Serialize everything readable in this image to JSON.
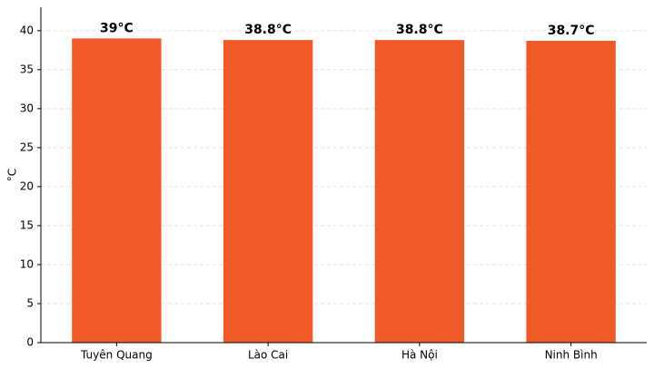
{
  "chart_data": {
    "type": "bar",
    "y_label": "°C",
    "categories": [
      "Tuyên Quang",
      "Lào Cai",
      "Hà Nội",
      "Ninh Bình"
    ],
    "values": [
      39,
      38.8,
      38.8,
      38.7
    ],
    "value_labels": [
      "39°C",
      "38.8°C",
      "38.8°C",
      "38.7°C"
    ],
    "color": "#f05a28",
    "ylim": [
      0,
      43
    ],
    "yticks": [
      0,
      5,
      10,
      15,
      20,
      25,
      30,
      35,
      40
    ],
    "grid": true
  }
}
